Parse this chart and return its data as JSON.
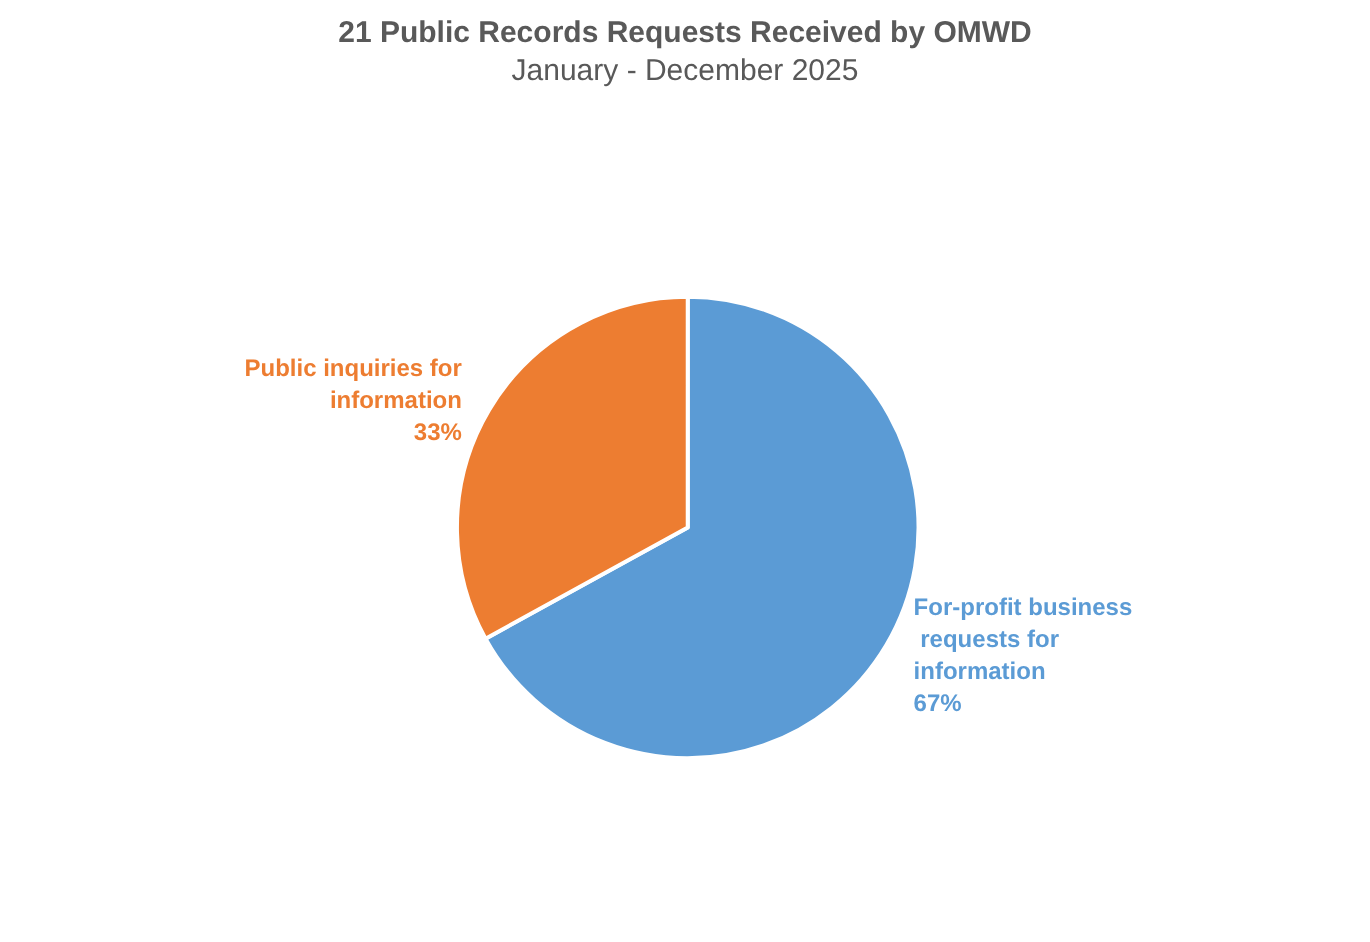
{
  "chart_data": {
    "type": "pie",
    "title": "21 Public Records Requests Received by OMWD",
    "subtitle": "January - December 2025",
    "categories": [
      "For-profit business requests for information",
      "Public inquiries for information"
    ],
    "values": [
      67,
      33
    ],
    "colors": [
      "#5b9bd5",
      "#ed7d31"
    ],
    "value_labels": [
      "67%",
      "33%"
    ],
    "legend": false
  }
}
